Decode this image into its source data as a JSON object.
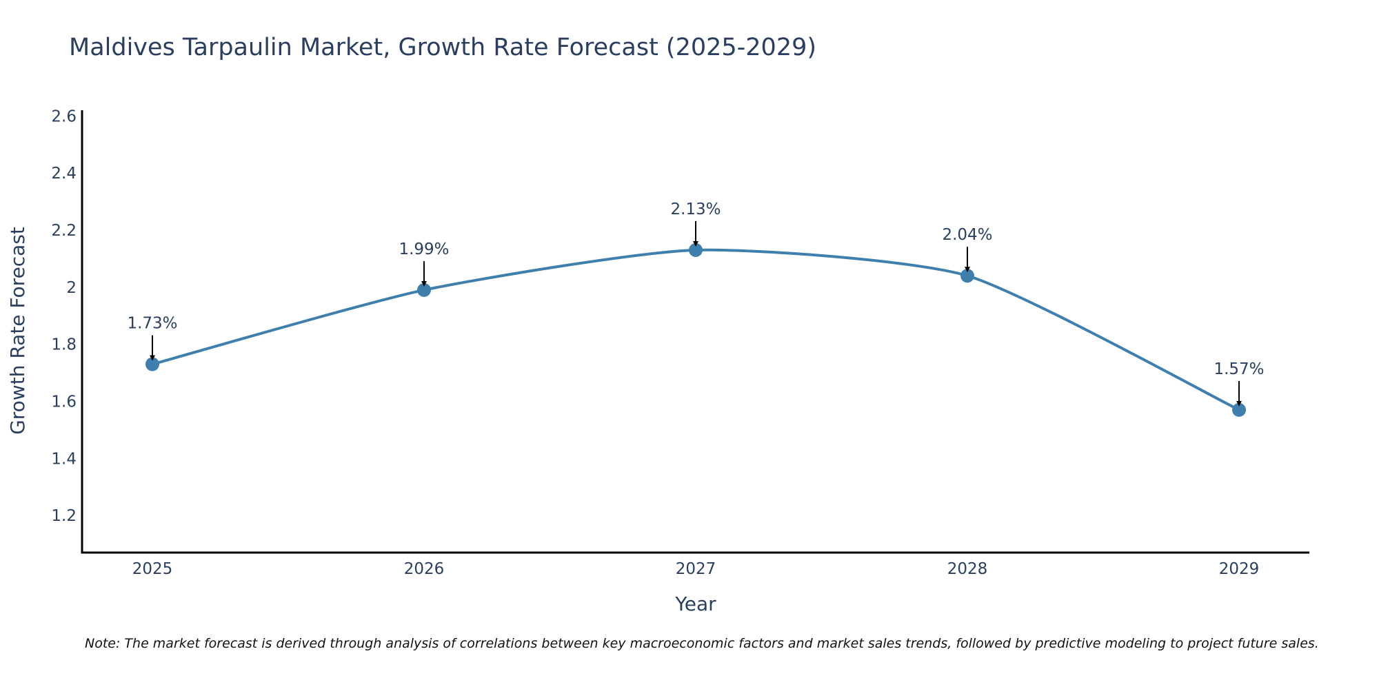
{
  "chart_data": {
    "type": "line",
    "title": "Maldives Tarpaulin Market, Growth Rate Forecast (2025-2029)",
    "xlabel": "Year",
    "ylabel": "Growth Rate Forecast",
    "categories": [
      "2025",
      "2026",
      "2027",
      "2028",
      "2029"
    ],
    "values": [
      1.73,
      1.99,
      2.13,
      2.04,
      1.57
    ],
    "data_labels": [
      "1.73%",
      "1.99%",
      "2.13%",
      "2.04%",
      "1.57%"
    ],
    "ylim": [
      1.07,
      2.62
    ],
    "yticks": [
      1.2,
      1.4,
      1.6,
      1.8,
      2,
      2.2,
      2.4,
      2.6
    ],
    "ytick_labels": [
      "1.2",
      "1.4",
      "1.6",
      "1.8",
      "2",
      "2.2",
      "2.4",
      "2.6"
    ],
    "line_style": "spline",
    "grid": false,
    "note": "Note: The market forecast is derived through analysis of correlations between key macroeconomic factors and market sales trends, followed by predictive modeling to project future sales."
  },
  "colors": {
    "series": "#3f7fae",
    "text": "#2a3f5f",
    "axis": "#000000",
    "arrow": "#000000"
  }
}
